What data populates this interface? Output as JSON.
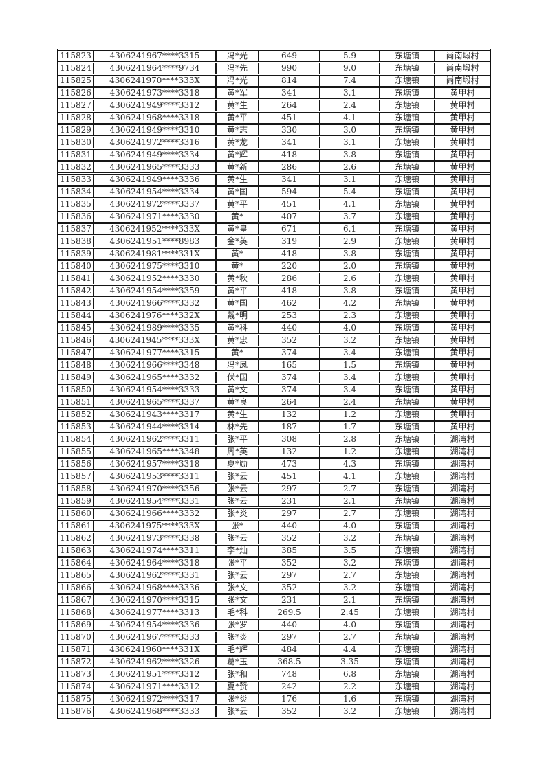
{
  "page": {
    "type": "document-table-page",
    "background_color": "#ffffff",
    "text_color": "#2d2d2d",
    "border_color": "#161616"
  },
  "table": {
    "column_names": [
      "serial-number-cell",
      "id-card-masked-cell",
      "name-masked-cell",
      "amount-cell",
      "rate-cell",
      "town-cell",
      "village-cell"
    ],
    "rows": [
      [
        "115823",
        "4306241967****3315",
        "冯*光",
        "649",
        "5.9",
        "东塘镇",
        "尚南塅村"
      ],
      [
        "115824",
        "4306241964****9734",
        "冯*先",
        "990",
        "9.0",
        "东塘镇",
        "尚南塅村"
      ],
      [
        "115825",
        "4306241970****333X",
        "冯*光",
        "814",
        "7.4",
        "东塘镇",
        "尚南塅村"
      ],
      [
        "115826",
        "4306241973****3318",
        "黄*军",
        "341",
        "3.1",
        "东塘镇",
        "黄甲村"
      ],
      [
        "115827",
        "4306241949****3312",
        "黄*生",
        "264",
        "2.4",
        "东塘镇",
        "黄甲村"
      ],
      [
        "115828",
        "4306241968****3318",
        "黄*平",
        "451",
        "4.1",
        "东塘镇",
        "黄甲村"
      ],
      [
        "115829",
        "4306241949****3310",
        "黄*志",
        "330",
        "3.0",
        "东塘镇",
        "黄甲村"
      ],
      [
        "115830",
        "4306241972****3316",
        "黄*龙",
        "341",
        "3.1",
        "东塘镇",
        "黄甲村"
      ],
      [
        "115831",
        "4306241949****3334",
        "黄*辉",
        "418",
        "3.8",
        "东塘镇",
        "黄甲村"
      ],
      [
        "115832",
        "4306241965****3333",
        "黄*新",
        "286",
        "2.6",
        "东塘镇",
        "黄甲村"
      ],
      [
        "115833",
        "4306241949****3336",
        "黄*生",
        "341",
        "3.1",
        "东塘镇",
        "黄甲村"
      ],
      [
        "115834",
        "4306241954****3334",
        "黄*国",
        "594",
        "5.4",
        "东塘镇",
        "黄甲村"
      ],
      [
        "115835",
        "4306241972****3337",
        "黄*平",
        "451",
        "4.1",
        "东塘镇",
        "黄甲村"
      ],
      [
        "115836",
        "4306241971****3330",
        "黄*",
        "407",
        "3.7",
        "东塘镇",
        "黄甲村"
      ],
      [
        "115837",
        "4306241952****333X",
        "黄*皇",
        "671",
        "6.1",
        "东塘镇",
        "黄甲村"
      ],
      [
        "115838",
        "4306241951****8983",
        "金*英",
        "319",
        "2.9",
        "东塘镇",
        "黄甲村"
      ],
      [
        "115839",
        "4306241981****331X",
        "黄*",
        "418",
        "3.8",
        "东塘镇",
        "黄甲村"
      ],
      [
        "115840",
        "4306241975****3310",
        "黄*",
        "220",
        "2.0",
        "东塘镇",
        "黄甲村"
      ],
      [
        "115841",
        "4306241952****3330",
        "黄*秋",
        "286",
        "2.6",
        "东塘镇",
        "黄甲村"
      ],
      [
        "115842",
        "4306241954****3359",
        "黄*平",
        "418",
        "3.8",
        "东塘镇",
        "黄甲村"
      ],
      [
        "115843",
        "4306241966****3332",
        "黄*国",
        "462",
        "4.2",
        "东塘镇",
        "黄甲村"
      ],
      [
        "115844",
        "4306241976****332X",
        "戴*明",
        "253",
        "2.3",
        "东塘镇",
        "黄甲村"
      ],
      [
        "115845",
        "4306241989****3335",
        "黄*科",
        "440",
        "4.0",
        "东塘镇",
        "黄甲村"
      ],
      [
        "115846",
        "4306241945****333X",
        "黄*忠",
        "352",
        "3.2",
        "东塘镇",
        "黄甲村"
      ],
      [
        "115847",
        "4306241977****3315",
        "黄*",
        "374",
        "3.4",
        "东塘镇",
        "黄甲村"
      ],
      [
        "115848",
        "4306241966****3348",
        "冯*凤",
        "165",
        "1.5",
        "东塘镇",
        "黄甲村"
      ],
      [
        "115849",
        "4306241965****3332",
        "伏*国",
        "374",
        "3.4",
        "东塘镇",
        "黄甲村"
      ],
      [
        "115850",
        "4306241954****3333",
        "黄*文",
        "374",
        "3.4",
        "东塘镇",
        "黄甲村"
      ],
      [
        "115851",
        "4306241965****3337",
        "黄*良",
        "264",
        "2.4",
        "东塘镇",
        "黄甲村"
      ],
      [
        "115852",
        "4306241943****3317",
        "黄*生",
        "132",
        "1.2",
        "东塘镇",
        "黄甲村"
      ],
      [
        "115853",
        "4306241944****3314",
        "林*先",
        "187",
        "1.7",
        "东塘镇",
        "黄甲村"
      ],
      [
        "115854",
        "4306241962****3311",
        "张*平",
        "308",
        "2.8",
        "东塘镇",
        "湖湾村"
      ],
      [
        "115855",
        "4306241965****3348",
        "周*英",
        "132",
        "1.2",
        "东塘镇",
        "湖湾村"
      ],
      [
        "115856",
        "4306241957****3318",
        "夏*勋",
        "473",
        "4.3",
        "东塘镇",
        "湖湾村"
      ],
      [
        "115857",
        "4306241953****3311",
        "张*云",
        "451",
        "4.1",
        "东塘镇",
        "湖湾村"
      ],
      [
        "115858",
        "4306241970****3356",
        "张*云",
        "297",
        "2.7",
        "东塘镇",
        "湖湾村"
      ],
      [
        "115859",
        "4306241954****3331",
        "张*云",
        "231",
        "2.1",
        "东塘镇",
        "湖湾村"
      ],
      [
        "115860",
        "4306241966****3332",
        "张*炎",
        "297",
        "2.7",
        "东塘镇",
        "湖湾村"
      ],
      [
        "115861",
        "4306241975****333X",
        "张*",
        "440",
        "4.0",
        "东塘镇",
        "湖湾村"
      ],
      [
        "115862",
        "4306241973****3338",
        "张*云",
        "352",
        "3.2",
        "东塘镇",
        "湖湾村"
      ],
      [
        "115863",
        "4306241974****3311",
        "李*灿",
        "385",
        "3.5",
        "东塘镇",
        "湖湾村"
      ],
      [
        "115864",
        "4306241964****3318",
        "张*平",
        "352",
        "3.2",
        "东塘镇",
        "湖湾村"
      ],
      [
        "115865",
        "4306241962****3331",
        "张*云",
        "297",
        "2.7",
        "东塘镇",
        "湖湾村"
      ],
      [
        "115866",
        "4306241968****3336",
        "张*文",
        "352",
        "3.2",
        "东塘镇",
        "湖湾村"
      ],
      [
        "115867",
        "4306241970****3315",
        "张*文",
        "231",
        "2.1",
        "东塘镇",
        "湖湾村"
      ],
      [
        "115868",
        "4306241977****3313",
        "毛*科",
        "269.5",
        "2.45",
        "东塘镇",
        "湖湾村"
      ],
      [
        "115869",
        "4306241954****3336",
        "张*罗",
        "440",
        "4.0",
        "东塘镇",
        "湖湾村"
      ],
      [
        "115870",
        "4306241967****3333",
        "张*炎",
        "297",
        "2.7",
        "东塘镇",
        "湖湾村"
      ],
      [
        "115871",
        "4306241960****331X",
        "毛*辉",
        "484",
        "4.4",
        "东塘镇",
        "湖湾村"
      ],
      [
        "115872",
        "4306241962****3326",
        "葛*玉",
        "368.5",
        "3.35",
        "东塘镇",
        "湖湾村"
      ],
      [
        "115873",
        "4306241951****3312",
        "张*和",
        "748",
        "6.8",
        "东塘镇",
        "湖湾村"
      ],
      [
        "115874",
        "4306241971****3312",
        "夏*赞",
        "242",
        "2.2",
        "东塘镇",
        "湖湾村"
      ],
      [
        "115875",
        "4306241972****3317",
        "张*炎",
        "176",
        "1.6",
        "东塘镇",
        "湖湾村"
      ],
      [
        "115876",
        "4306241968****3333",
        "张*云",
        "352",
        "3.2",
        "东塘镇",
        "湖湾村"
      ]
    ]
  }
}
